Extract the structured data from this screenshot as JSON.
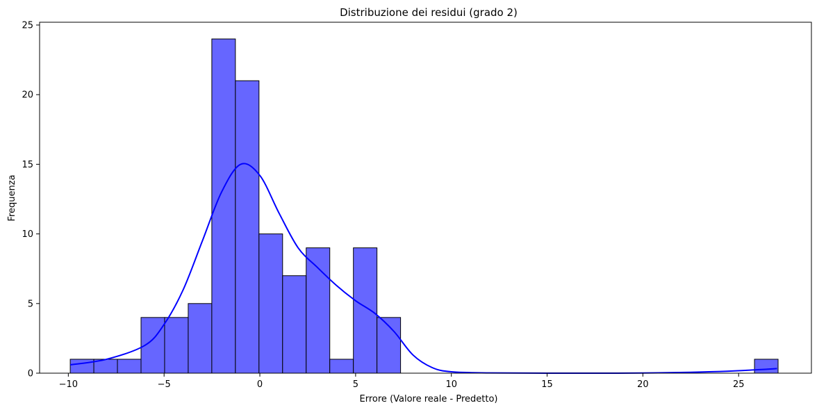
{
  "chart_data": {
    "type": "bar",
    "title": "Distribuzione dei residui (grado 2)",
    "xlabel": "Errore (Valore reale - Predetto)",
    "ylabel": "Frequenza",
    "xlim": [
      -11.5,
      28.8
    ],
    "ylim": [
      0,
      25.2
    ],
    "xticks": [
      -10,
      -5,
      0,
      5,
      10,
      15,
      20,
      25
    ],
    "xtick_labels": [
      "−10",
      "−5",
      "0",
      "5",
      "10",
      "15",
      "20",
      "25"
    ],
    "yticks": [
      0,
      5,
      10,
      15,
      20,
      25
    ],
    "ytick_labels": [
      "0",
      "5",
      "10",
      "15",
      "20",
      "25"
    ],
    "bin_start": -9.9,
    "bin_width": 1.232,
    "counts": [
      1,
      1,
      1,
      4,
      4,
      5,
      24,
      21,
      10,
      7,
      9,
      1,
      9,
      4,
      0,
      0,
      0,
      0,
      0,
      0,
      0,
      0,
      0,
      0,
      0,
      0,
      0,
      0,
      0,
      1
    ],
    "kde": {
      "x": [
        -9.9,
        -8,
        -6,
        -5,
        -4,
        -3,
        -2,
        -1,
        0,
        1,
        2,
        3,
        4,
        5,
        6,
        7,
        8,
        9,
        10,
        12,
        15,
        20,
        24,
        26,
        27
      ],
      "y": [
        0.6,
        1.0,
        2.0,
        3.5,
        6.0,
        9.5,
        13.0,
        15.0,
        14.2,
        11.5,
        9.0,
        7.6,
        6.3,
        5.2,
        4.3,
        3.0,
        1.3,
        0.4,
        0.1,
        0.02,
        0.0,
        0.01,
        0.12,
        0.25,
        0.33
      ]
    },
    "bar_color": "#6666ff",
    "bar_edge_color": "#000000",
    "kde_color": "#0000ff",
    "grid": false,
    "legend": "none"
  }
}
